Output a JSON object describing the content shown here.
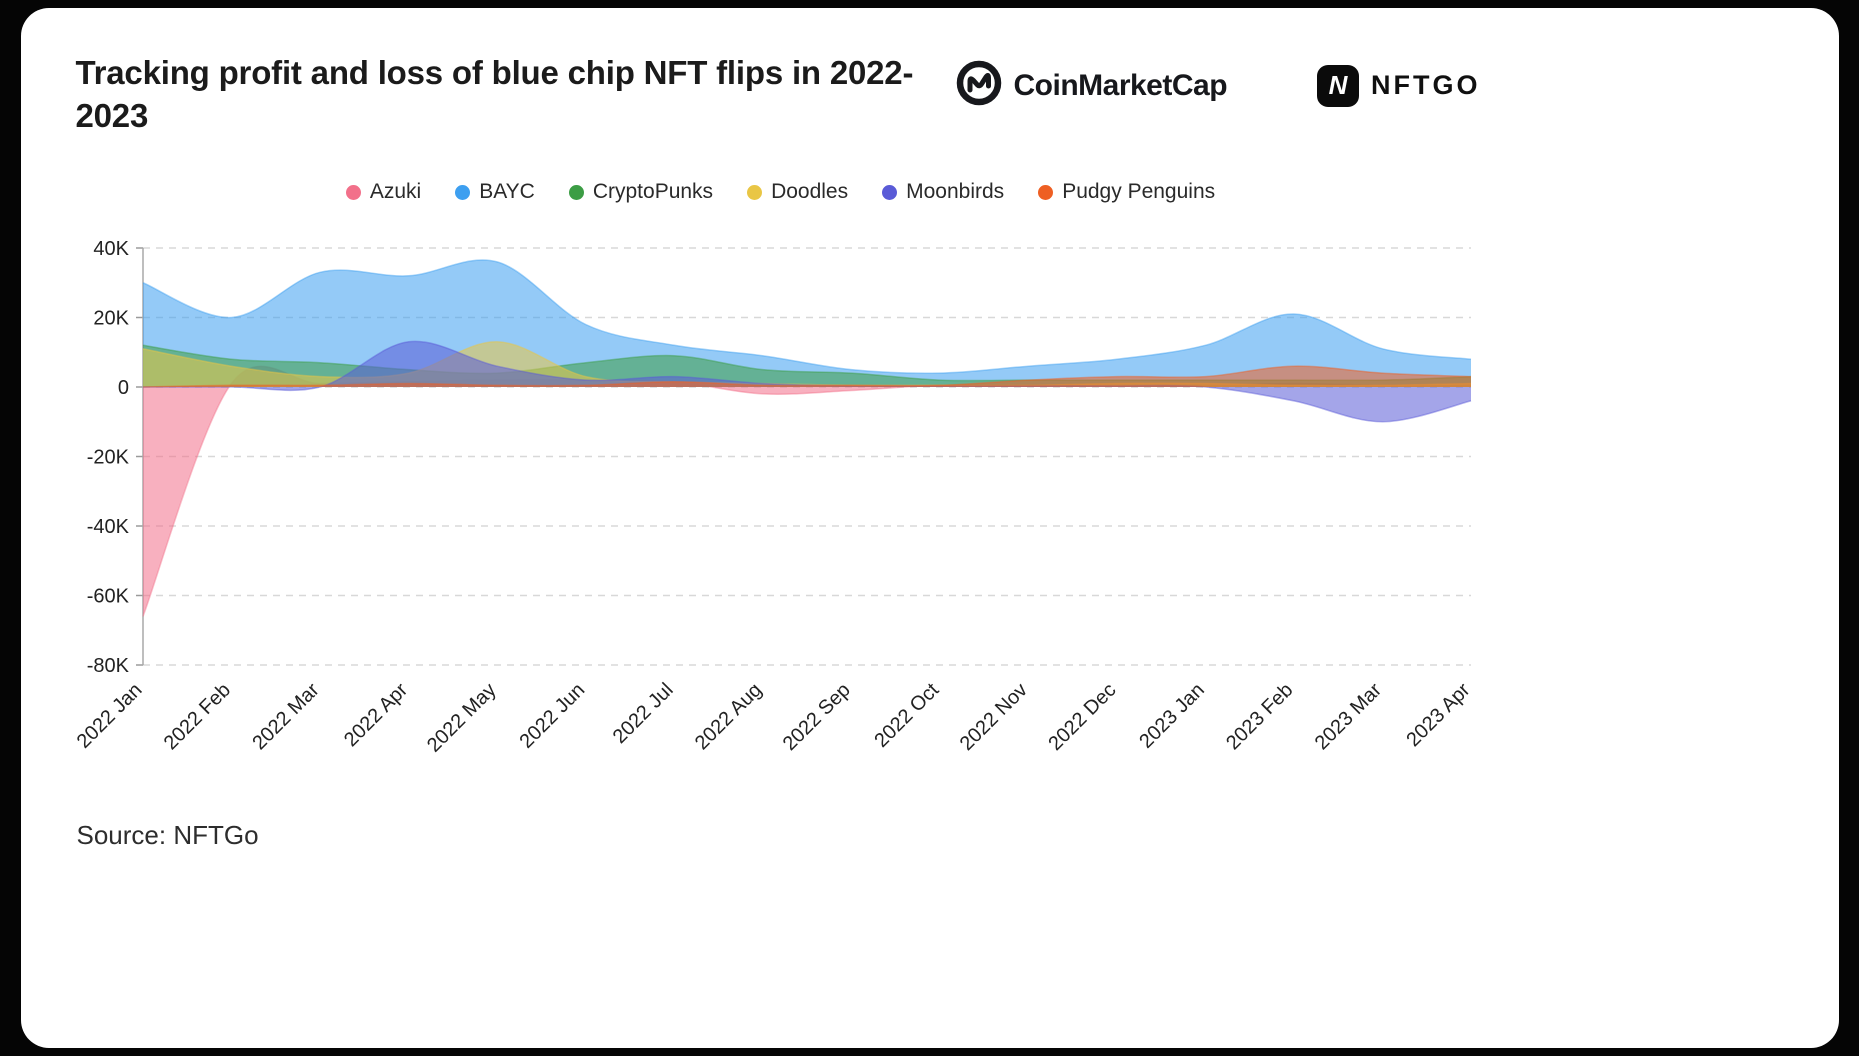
{
  "header": {
    "title": "Tracking profit and loss of blue chip NFT flips in 2022-2023",
    "cmc_label": "CoinMarketCap",
    "nftgo_label": "NFTGO",
    "nftgo_icon_letter": "N"
  },
  "footer": {
    "source": "Source: NFTGo"
  },
  "chart_data": {
    "type": "area",
    "title": "Tracking profit and loss of blue chip NFT flips in 2022-2023",
    "categories": [
      "2022 Jan",
      "2022 Feb",
      "2022 Mar",
      "2022 Apr",
      "2022 May",
      "2022 Jun",
      "2022 Jul",
      "2022 Aug",
      "2022 Sep",
      "2022 Oct",
      "2022 Nov",
      "2022 Dec",
      "2023 Jan",
      "2023 Feb",
      "2023 Mar",
      "2023 Apr"
    ],
    "unit": "K",
    "ylim": [
      -80,
      40
    ],
    "y_tick_values": [
      40,
      20,
      0,
      -20,
      -40,
      -60,
      -80
    ],
    "y_tick_labels": [
      "40K",
      "20K",
      "0",
      "-20K",
      "-40K",
      "-60K",
      "-80K"
    ],
    "grid": "dashed-horizontal",
    "legend_position": "top-center",
    "fill_opacity": 0.55,
    "series": [
      {
        "name": "Azuki",
        "color": "#F2708A",
        "values": [
          -66,
          1,
          1,
          1.5,
          2,
          2,
          1.5,
          -2,
          -1,
          0.5,
          0.5,
          0.5,
          0.5,
          1,
          0.5,
          0.5
        ]
      },
      {
        "name": "BAYC",
        "color": "#3D9FF0",
        "values": [
          30,
          20,
          33,
          32,
          36,
          18,
          12,
          9,
          5,
          4,
          6,
          8,
          12,
          21,
          11,
          8
        ]
      },
      {
        "name": "CryptoPunks",
        "color": "#3C9D45",
        "values": [
          12,
          8,
          7,
          5,
          4,
          7,
          9,
          5,
          4,
          2,
          2,
          2,
          2,
          2,
          2,
          3
        ]
      },
      {
        "name": "Doodles",
        "color": "#E9C645",
        "values": [
          11,
          6,
          3,
          4,
          13,
          3,
          1.5,
          1,
          0.5,
          0.5,
          0.5,
          1,
          1,
          0.5,
          0.5,
          1
        ]
      },
      {
        "name": "Moonbirds",
        "color": "#5A5BD7",
        "values": [
          0,
          0,
          0,
          13,
          6,
          2,
          3,
          1,
          0.3,
          0.3,
          0.3,
          0.3,
          0,
          -4,
          -10,
          -4
        ]
      },
      {
        "name": "Pudgy Penguins",
        "color": "#EE5F23",
        "values": [
          0,
          0.5,
          0.5,
          1,
          0.5,
          0.5,
          1.5,
          0.5,
          0.5,
          0.5,
          2,
          3,
          3,
          6,
          4,
          3
        ]
      }
    ]
  }
}
